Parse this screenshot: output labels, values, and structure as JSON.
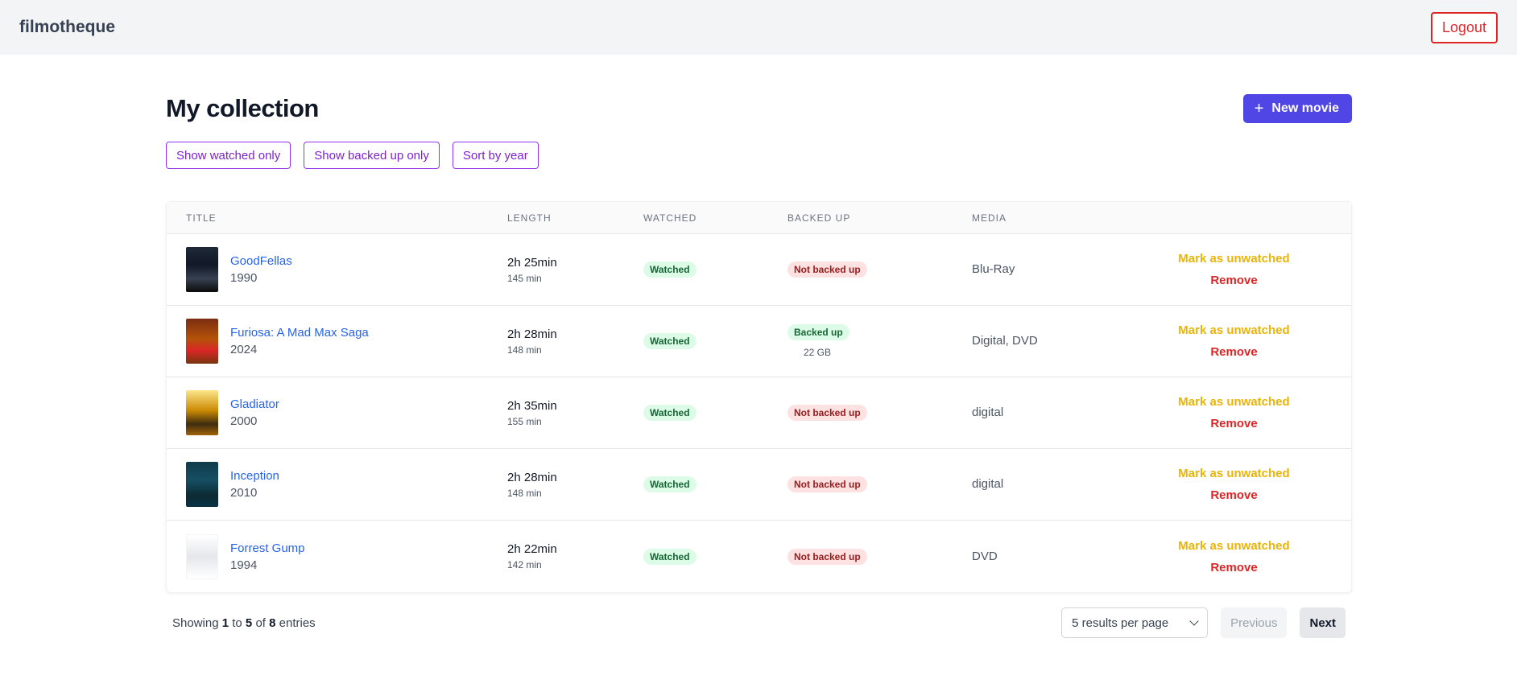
{
  "app": {
    "brand": "filmotheque",
    "logout_label": "Logout"
  },
  "page": {
    "title": "My collection",
    "new_movie_label": "New movie"
  },
  "filters": {
    "watched_only": "Show watched only",
    "backed_up_only": "Show backed up only",
    "sort_year": "Sort by year"
  },
  "table": {
    "headers": {
      "title": "TITLE",
      "length": "LENGTH",
      "watched": "WATCHED",
      "backed_up": "BACKED UP",
      "media": "MEDIA"
    },
    "rows": [
      {
        "title": "GoodFellas",
        "year": "1990",
        "length": "2h 25min",
        "minutes": "145 min",
        "watched": "Watched",
        "backed_up": "Not backed up",
        "size": "",
        "media": "Blu-Ray",
        "action_primary": "Mark as unwatched",
        "action_remove": "Remove"
      },
      {
        "title": "Furiosa: A Mad Max Saga",
        "year": "2024",
        "length": "2h 28min",
        "minutes": "148 min",
        "watched": "Watched",
        "backed_up": "Backed up",
        "size": "22 GB",
        "media": "Digital, DVD",
        "action_primary": "Mark as unwatched",
        "action_remove": "Remove"
      },
      {
        "title": "Gladiator",
        "year": "2000",
        "length": "2h 35min",
        "minutes": "155 min",
        "watched": "Watched",
        "backed_up": "Not backed up",
        "size": "",
        "media": "digital",
        "action_primary": "Mark as unwatched",
        "action_remove": "Remove"
      },
      {
        "title": "Inception",
        "year": "2010",
        "length": "2h 28min",
        "minutes": "148 min",
        "watched": "Watched",
        "backed_up": "Not backed up",
        "size": "",
        "media": "digital",
        "action_primary": "Mark as unwatched",
        "action_remove": "Remove"
      },
      {
        "title": "Forrest Gump",
        "year": "1994",
        "length": "2h 22min",
        "minutes": "142 min",
        "watched": "Watched",
        "backed_up": "Not backed up",
        "size": "",
        "media": "DVD",
        "action_primary": "Mark as unwatched",
        "action_remove": "Remove"
      }
    ]
  },
  "pagination": {
    "showing_prefix": "Showing",
    "from": "1",
    "to_word": "to",
    "to": "5",
    "of_word": "of",
    "total": "8",
    "entries_word": "entries",
    "per_page": "5 results per page",
    "previous_label": "Previous",
    "next_label": "Next"
  },
  "colors": {
    "primary": "#4f46e5",
    "danger": "#dc2626",
    "warning": "#eab308",
    "link": "#2563eb",
    "filter": "#9333ea"
  },
  "icons": {
    "new_movie": "plus-icon",
    "per_page": "chevron-down-icon"
  }
}
